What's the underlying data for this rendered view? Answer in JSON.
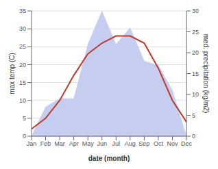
{
  "chart_data": {
    "type": "line",
    "categories": [
      "Jan",
      "Feb",
      "Mar",
      "Apr",
      "May",
      "Jun",
      "Jul",
      "Aug",
      "Sep",
      "Oct",
      "Nov",
      "Dec"
    ],
    "xlabel": "date (month)",
    "ylabel": "max temp (C)",
    "y2label": "med. precipitation (kg/m2)",
    "series": [
      {
        "type": "area",
        "axis": "y2",
        "color": "#c5cef0",
        "values": [
          0,
          7,
          9,
          9,
          22,
          30,
          22,
          26,
          18,
          17,
          11,
          0
        ]
      },
      {
        "type": "line",
        "color": "#c0392b",
        "values": [
          2,
          5,
          10,
          17,
          23,
          26,
          28,
          28,
          26,
          19,
          10,
          4
        ]
      }
    ],
    "ylim": [
      0,
      35
    ],
    "yticks": [
      0,
      5,
      10,
      15,
      20,
      25,
      30,
      35
    ],
    "y2lim": [
      0,
      30
    ],
    "y2ticks": [
      0,
      5,
      10,
      15,
      20,
      25,
      30
    ],
    "grid": true
  }
}
